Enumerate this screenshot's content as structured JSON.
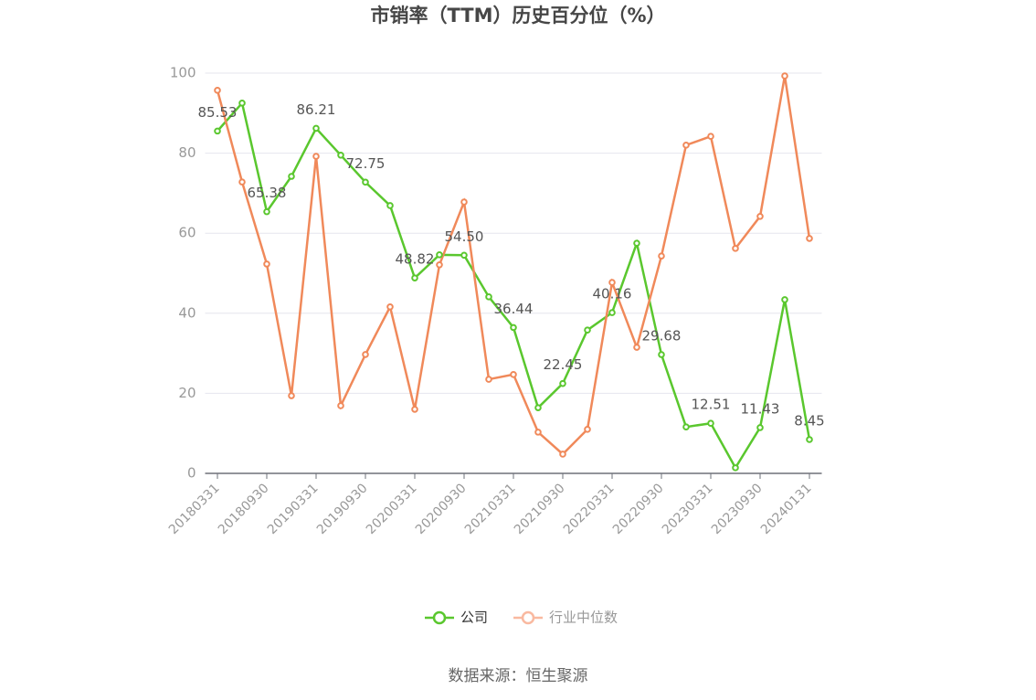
{
  "chart_data": {
    "type": "line",
    "title": "市销率（TTM）历史百分位（%）",
    "source": "数据来源：恒生聚源",
    "categories": [
      "20180331",
      null,
      "20180930",
      null,
      "20190331",
      null,
      "20190930",
      null,
      "20200331",
      null,
      "20200930",
      null,
      "20210331",
      null,
      "20210930",
      null,
      "20220331",
      null,
      "20220930",
      null,
      "20230331",
      null,
      "20230930",
      null,
      "20240131"
    ],
    "series": [
      {
        "name": "公司",
        "color": "#5ac72e",
        "values": [
          85.53,
          92.5,
          65.38,
          74.2,
          86.21,
          79.5,
          72.75,
          66.9,
          48.82,
          54.6,
          54.5,
          44.1,
          36.44,
          16.4,
          22.45,
          35.8,
          40.16,
          57.5,
          29.68,
          11.6,
          12.51,
          1.4,
          11.43,
          43.4,
          8.45
        ],
        "value_labels": [
          "85.53",
          null,
          "65.38",
          null,
          "86.21",
          null,
          "72.75",
          null,
          "48.82",
          null,
          "54.50",
          null,
          "36.44",
          null,
          "22.45",
          null,
          "40.16",
          null,
          "29.68",
          null,
          "12.51",
          null,
          "11.43",
          null,
          "8.45"
        ]
      },
      {
        "name": "行业中位数",
        "color": "#f0895a",
        "values": [
          95.7,
          72.8,
          52.3,
          19.4,
          79.2,
          16.9,
          29.7,
          41.6,
          16.0,
          52.1,
          67.8,
          23.5,
          24.7,
          10.3,
          4.8,
          11.0,
          47.7,
          31.5,
          54.3,
          82.0,
          84.2,
          56.2,
          64.2,
          99.3,
          58.7
        ]
      }
    ],
    "ylim": [
      0,
      100
    ],
    "yticks": [
      0,
      20,
      40,
      60,
      80,
      100
    ],
    "grid": true
  }
}
